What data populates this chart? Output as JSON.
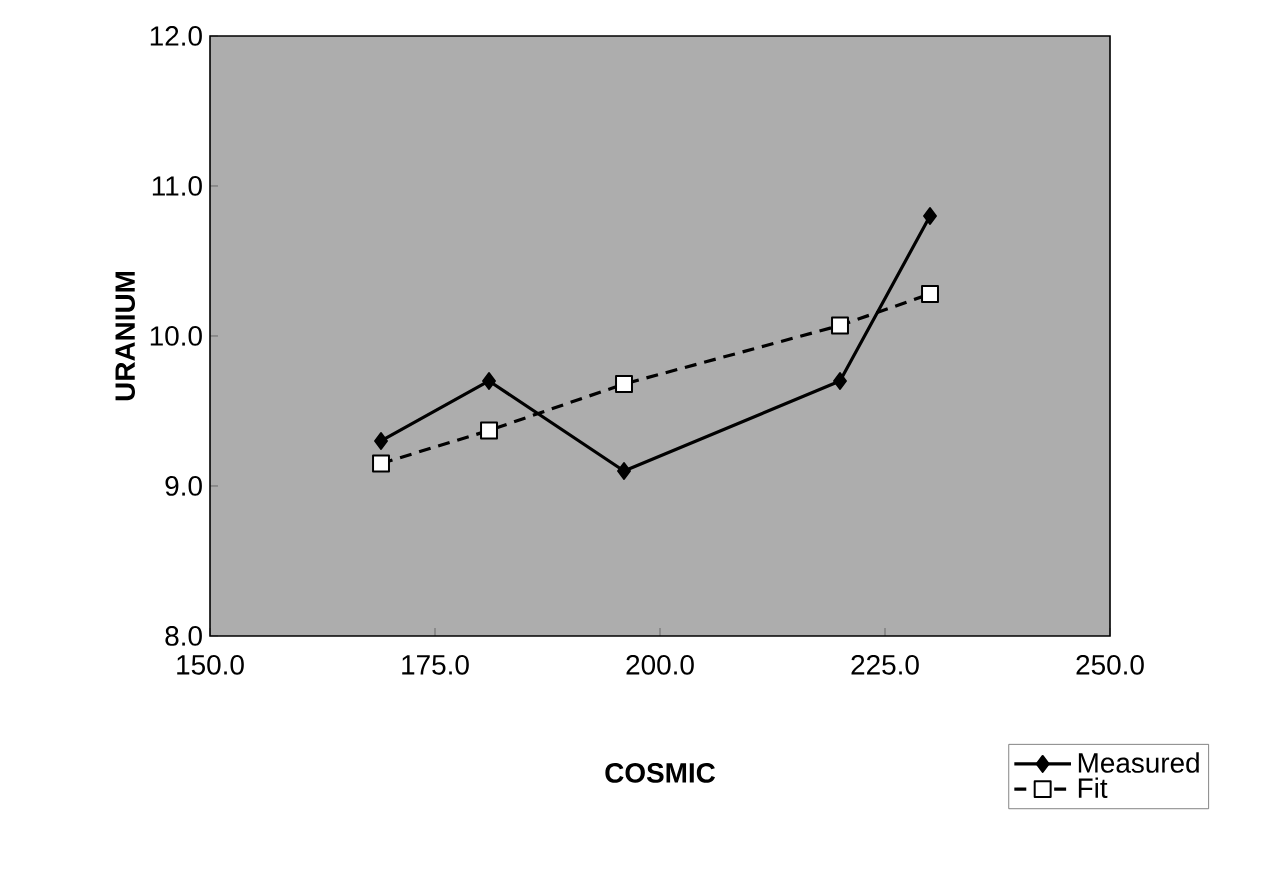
{
  "chart_data": {
    "type": "line",
    "xlabel": "COSMIC",
    "ylabel": "URANIUM",
    "x": [
      169,
      181,
      196,
      220,
      230
    ],
    "series": [
      {
        "name": "Measured",
        "color": "#000000",
        "values": [
          9.3,
          9.7,
          9.1,
          9.7,
          10.8
        ],
        "marker": "diamond",
        "line_style": "solid"
      },
      {
        "name": "Fit",
        "color": "#000000",
        "values": [
          9.15,
          9.37,
          9.68,
          10.07,
          10.28
        ],
        "marker": "square",
        "line_style": "dashed"
      }
    ],
    "xlim": [
      150,
      250
    ],
    "ylim": [
      8,
      12
    ],
    "xticks": [
      {
        "value": 150,
        "label": "150.0"
      },
      {
        "value": 175,
        "label": "175.0"
      },
      {
        "value": 200,
        "label": "200.0"
      },
      {
        "value": 225,
        "label": "225.0"
      },
      {
        "value": 250,
        "label": "250.0"
      }
    ],
    "yticks": [
      {
        "value": 8,
        "label": "8.0"
      },
      {
        "value": 9,
        "label": "9.0"
      },
      {
        "value": 10,
        "label": "10.0"
      },
      {
        "value": 11,
        "label": "11.0"
      },
      {
        "value": 12,
        "label": "12.0"
      }
    ],
    "grid": false,
    "legend": "bottom right"
  }
}
